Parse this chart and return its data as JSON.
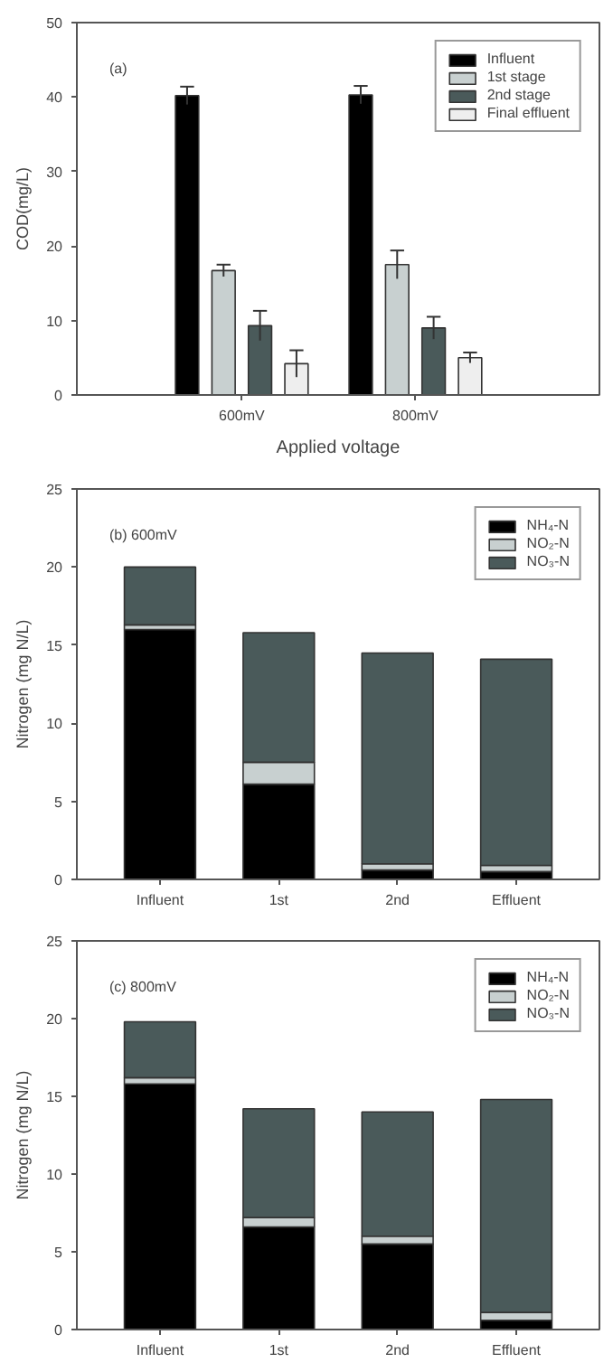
{
  "chart_data": [
    {
      "type": "bar",
      "categories": [
        "600mV",
        "800mV"
      ],
      "xlabel": "Applied voltage",
      "ylabel": "COD(mg/L)",
      "ylim": [
        0,
        50
      ],
      "yticks": [
        0,
        10,
        20,
        30,
        40,
        50
      ],
      "legend": "top right",
      "annotations": [
        "(a)"
      ],
      "series": [
        {
          "name": "Influent",
          "color": "#000000",
          "values": [
            40.2,
            40.3
          ],
          "errors": [
            1.2,
            1.2
          ]
        },
        {
          "name": "1st stage",
          "color": "#c8d0d0",
          "values": [
            16.7,
            17.5
          ],
          "errors": [
            0.8,
            1.9
          ]
        },
        {
          "name": "2nd stage",
          "color": "#4a5a5a",
          "values": [
            9.3,
            9.0
          ],
          "errors": [
            2.0,
            1.5
          ]
        },
        {
          "name": "Final effluent",
          "color": "#eeeeee",
          "values": [
            4.2,
            5.0
          ],
          "errors": [
            1.8,
            0.7
          ]
        }
      ]
    },
    {
      "type": "bar",
      "stacked": true,
      "categories": [
        "Influent",
        "1st",
        "2nd",
        "Effluent"
      ],
      "ylabel": "Nitrogen (mg N/L)",
      "ylim": [
        0,
        25
      ],
      "yticks": [
        0,
        5,
        10,
        15,
        20,
        25
      ],
      "legend": "top right",
      "annotations": [
        "(b) 600mV"
      ],
      "series": [
        {
          "name": "NH₄-N",
          "color": "#000000",
          "values": [
            16.0,
            6.1,
            0.6,
            0.5
          ]
        },
        {
          "name": "NO₂-N",
          "color": "#c8d0d0",
          "values": [
            0.3,
            1.4,
            0.4,
            0.4
          ]
        },
        {
          "name": "NO₃-N",
          "color": "#4a5a5a",
          "values": [
            3.7,
            8.3,
            13.5,
            13.2
          ]
        }
      ]
    },
    {
      "type": "bar",
      "stacked": true,
      "categories": [
        "Influent",
        "1st",
        "2nd",
        "Effluent"
      ],
      "ylabel": "Nitrogen (mg N/L)",
      "ylim": [
        0,
        25
      ],
      "yticks": [
        0,
        5,
        10,
        15,
        20,
        25
      ],
      "legend": "top right",
      "annotations": [
        "(c) 800mV"
      ],
      "series": [
        {
          "name": "NH₄-N",
          "color": "#000000",
          "values": [
            15.8,
            6.6,
            5.5,
            0.6
          ]
        },
        {
          "name": "NO₂-N",
          "color": "#c8d0d0",
          "values": [
            0.4,
            0.6,
            0.5,
            0.5
          ]
        },
        {
          "name": "NO₃-N",
          "color": "#4a5a5a",
          "values": [
            3.6,
            7.0,
            8.0,
            13.7
          ]
        }
      ]
    }
  ]
}
